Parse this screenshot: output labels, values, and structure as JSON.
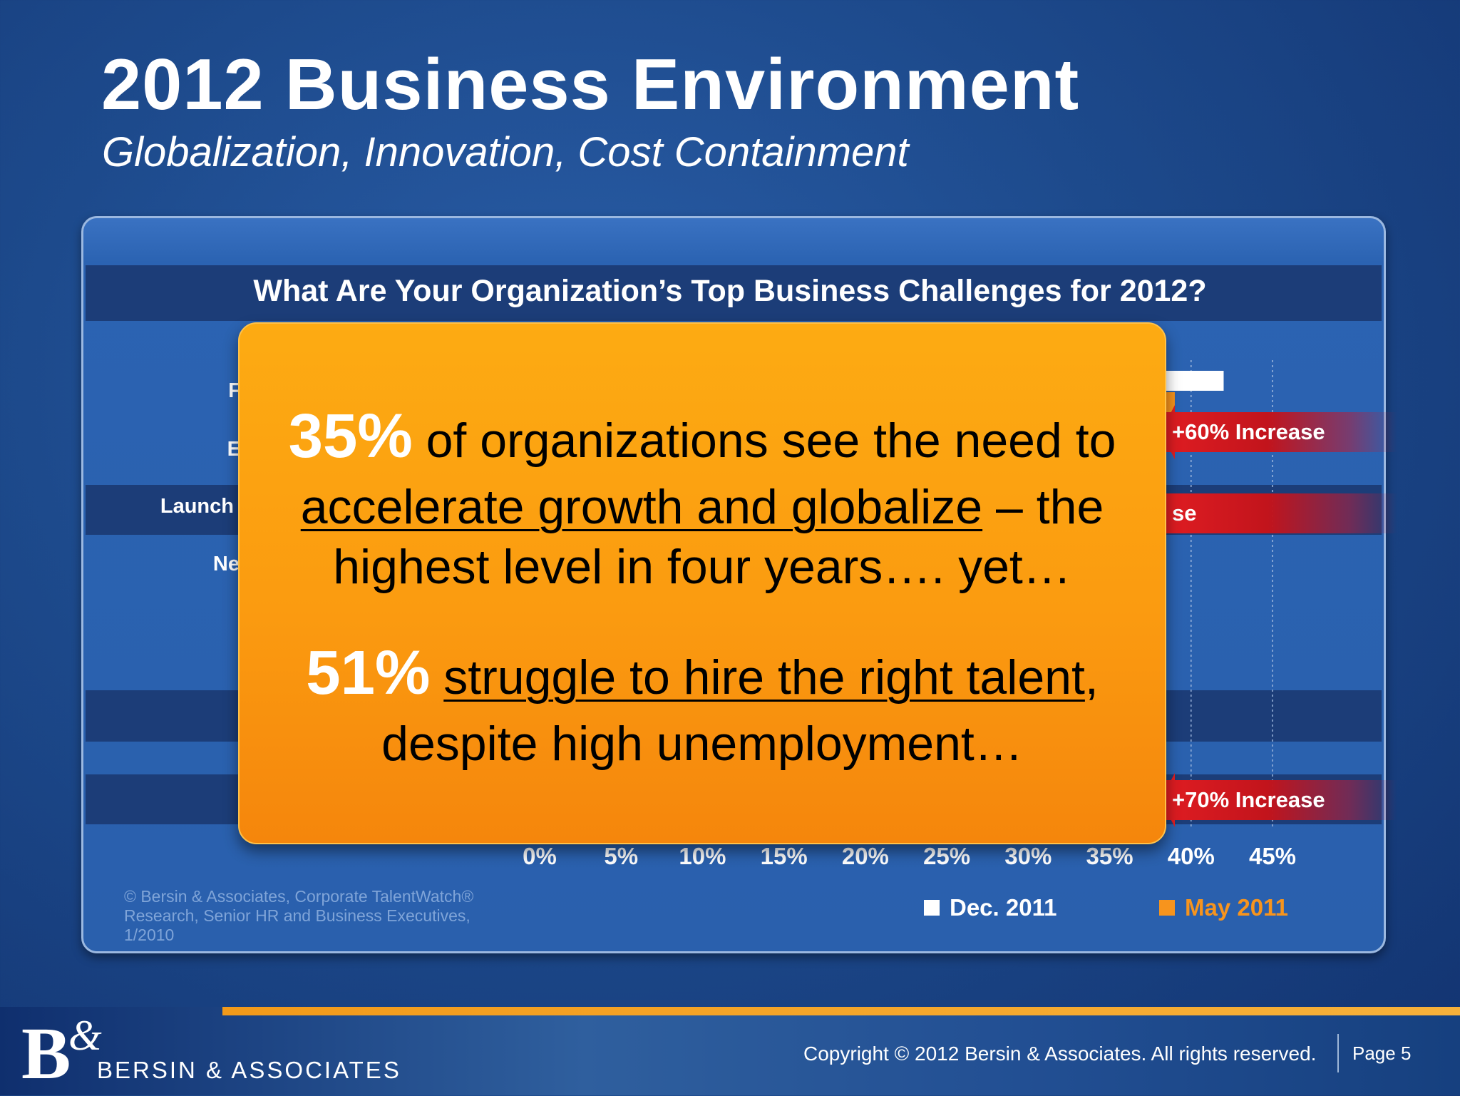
{
  "slide": {
    "title": "2012 Business Environment",
    "subtitle": "Globalization, Innovation, Cost Containment"
  },
  "chart": {
    "question": "What Are Your Organization’s Top Business Challenges for 2012?",
    "visible_row_labels": [
      "F",
      "E",
      "Launch",
      "Ne"
    ],
    "source": "© Bersin & Associates, Corporate TalentWatch® Research, Senior HR and Business Executives, 1/2010",
    "badges": [
      "+60% Increase",
      "se",
      "+70% Increase"
    ]
  },
  "chart_data": {
    "type": "bar",
    "title": "What Are Your Organization’s Top Business Challenges for 2012?",
    "xlim": [
      0,
      45
    ],
    "x_tick_labels": [
      "0%",
      "5%",
      "10%",
      "15%",
      "20%",
      "25%",
      "30%",
      "35%",
      "40%",
      "45%"
    ],
    "x_ticks": [
      0,
      5,
      10,
      15,
      20,
      25,
      30,
      35,
      40,
      45
    ],
    "series": [
      {
        "name": "Dec. 2011",
        "color": "#ffffff"
      },
      {
        "name": "May 2011",
        "color": "#f7941d"
      }
    ],
    "visible_bar_ends": [
      {
        "series": "Dec. 2011",
        "row": 1,
        "value": 42
      },
      {
        "series": "May 2011",
        "row": 1,
        "value": 39
      }
    ],
    "legend_position": "bottom-right",
    "gridlines": "vertical dotted"
  },
  "callout": {
    "stat1": "35%",
    "line1_rest": "of organizations see the need to",
    "line2_underlined": "accelerate growth and globalize",
    "line2_rest": "– the",
    "line3": "highest level in four years…. yet…",
    "stat2": "51%",
    "line4_underlined": "struggle to hire the right talent",
    "line4_rest": ",",
    "line5": "despite high unemployment…"
  },
  "footer": {
    "logo_mark": "B",
    "logo_amp": "&",
    "logo_text": "BERSIN & ASSOCIATES",
    "copyright": "Copyright © 2012 Bersin & Associates. All rights reserved.",
    "page": "Page 5"
  },
  "colors": {
    "background": "#1d4a8c",
    "callout": "#fb9b10",
    "badge": "#e01d22",
    "may_series": "#f7941d",
    "dec_series": "#ffffff"
  }
}
